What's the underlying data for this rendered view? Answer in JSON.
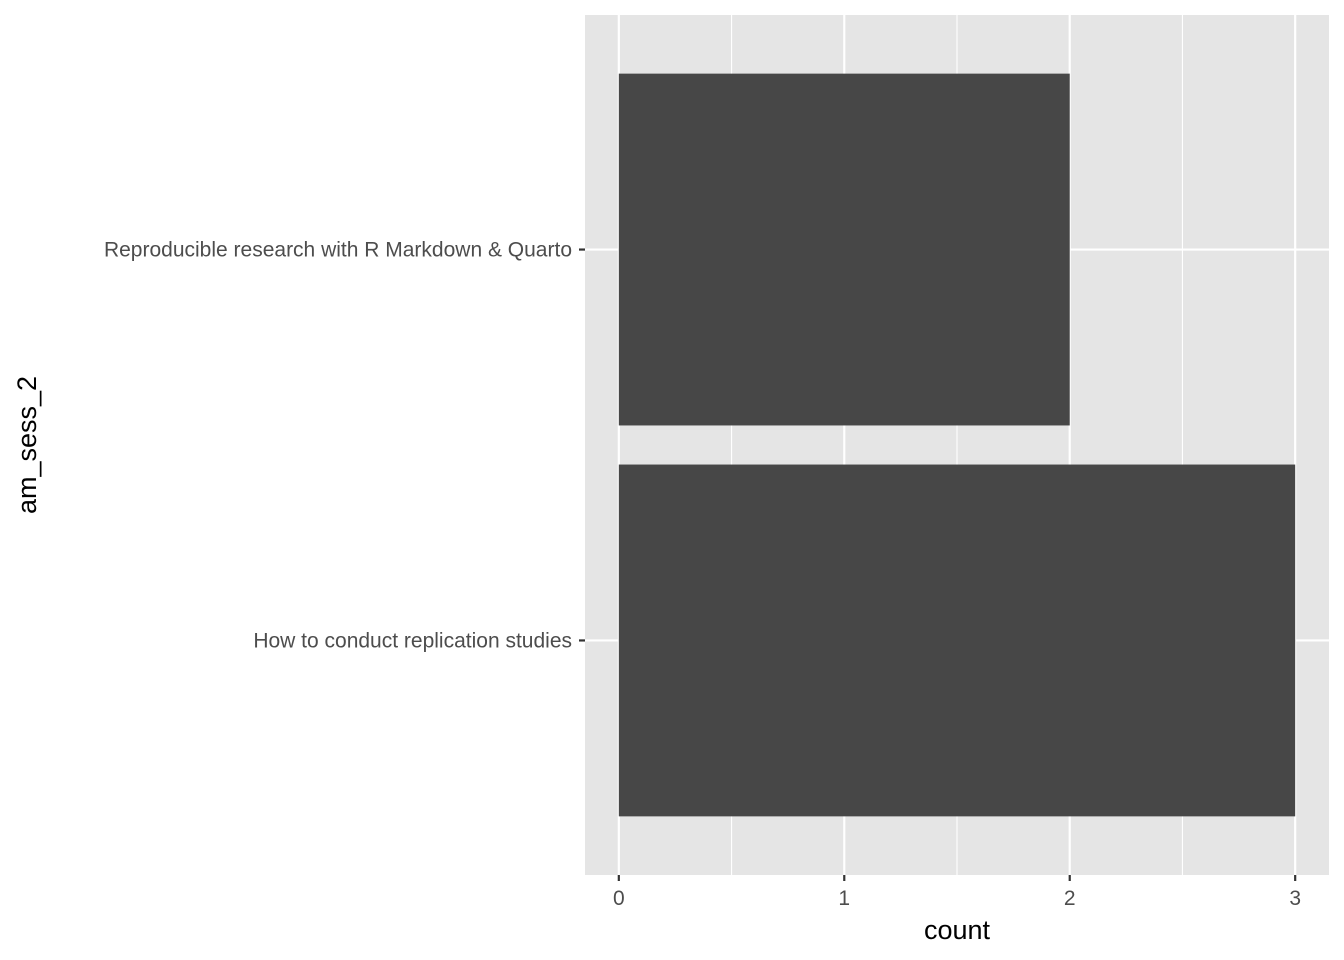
{
  "chart_data": {
    "type": "bar",
    "orientation": "horizontal",
    "categories": [
      "Reproducible research with R Markdown & Quarto",
      "How to conduct replication studies"
    ],
    "values": [
      2,
      3
    ],
    "xlabel": "count",
    "ylabel": "am_sess_2",
    "xlim": [
      -0.15,
      3.15
    ],
    "xticks": [
      "0",
      "1",
      "2",
      "3"
    ],
    "xtick_values": [
      0,
      1,
      2,
      3
    ],
    "x_minor_breaks": [
      0.5,
      1.5,
      2.5
    ],
    "grid": true,
    "legend": "none",
    "colors": {
      "bar": "#474747",
      "panel_background": "#e5e5e5",
      "gridline": "#ffffff"
    }
  }
}
